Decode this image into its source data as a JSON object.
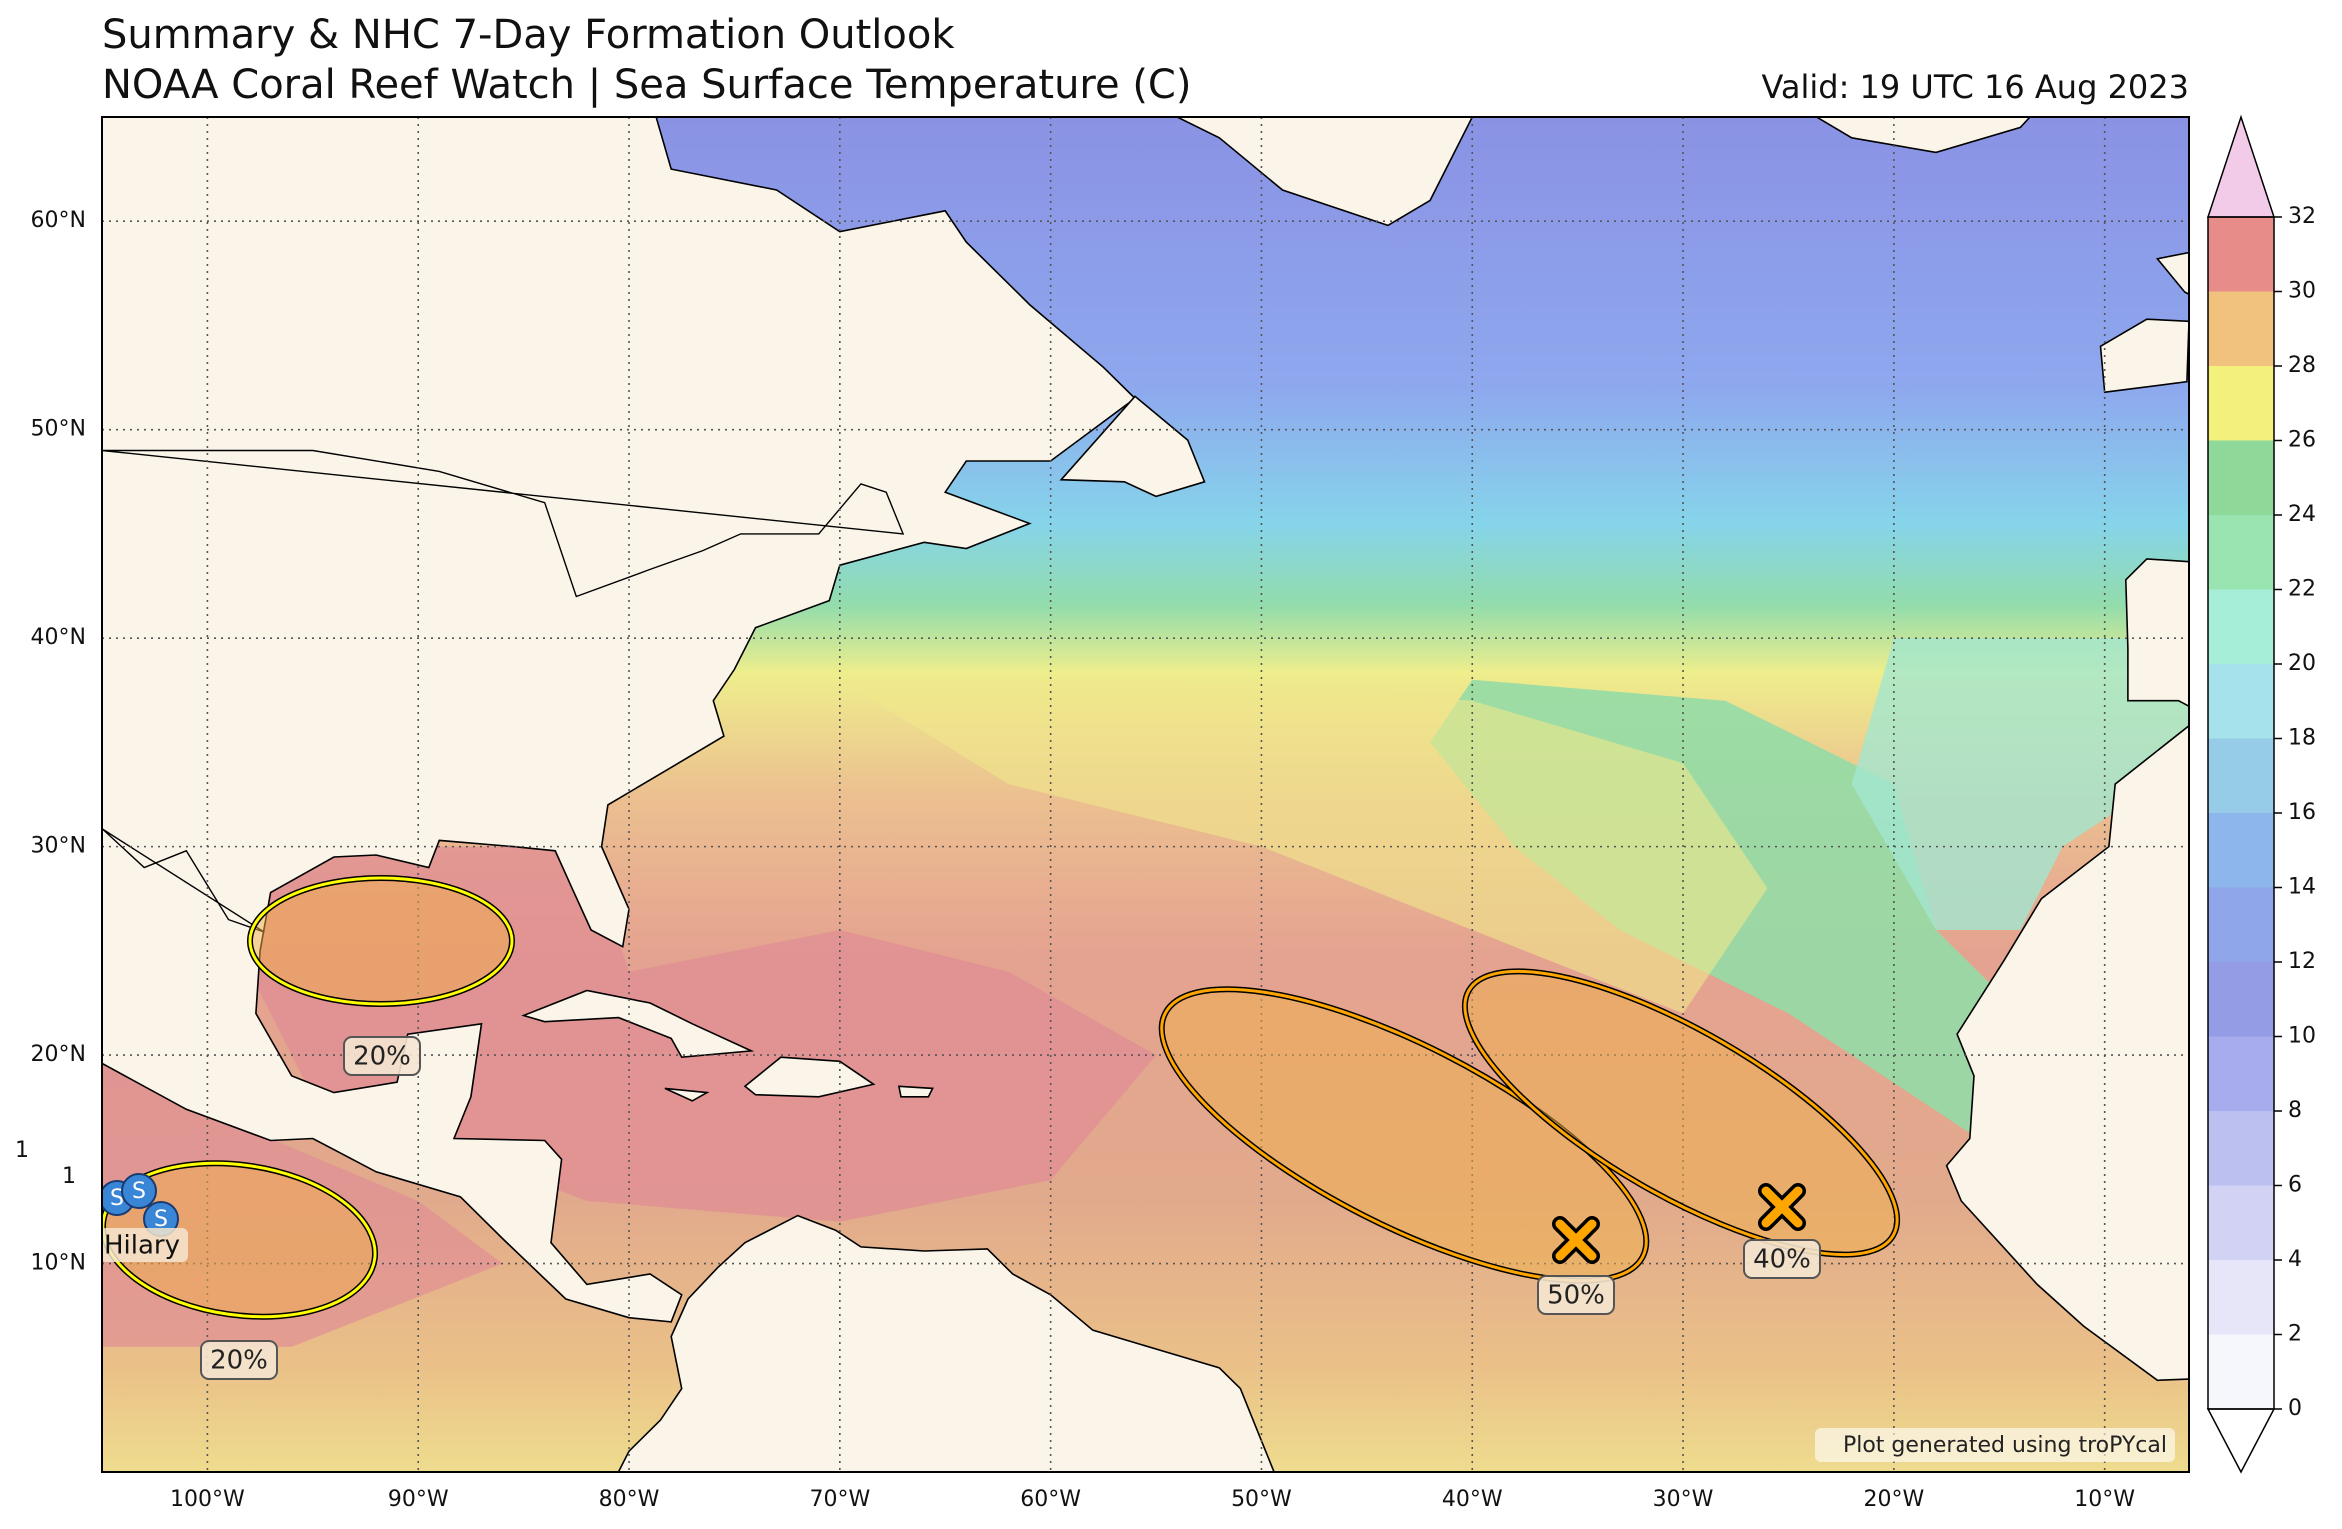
{
  "header": {
    "title": "Summary & NHC 7-Day Formation Outlook",
    "subtitle": "NOAA Coral Reef Watch | Sea Surface Temperature (C)",
    "valid": "Valid: 19 UTC 16 Aug 2023"
  },
  "map": {
    "lat_range": [
      0,
      65
    ],
    "lon_range": [
      -105,
      -6
    ],
    "lat_labels": [
      {
        "value": 10,
        "label": "10°N"
      },
      {
        "value": 20,
        "label": "20°N"
      },
      {
        "value": 30,
        "label": "30°N"
      },
      {
        "value": 40,
        "label": "40°N"
      },
      {
        "value": 50,
        "label": "50°N"
      },
      {
        "value": 60,
        "label": "60°N"
      }
    ],
    "lon_labels": [
      {
        "value": -100,
        "label": "100°W"
      },
      {
        "value": -90,
        "label": "90°W"
      },
      {
        "value": -80,
        "label": "80°W"
      },
      {
        "value": -70,
        "label": "70°W"
      },
      {
        "value": -60,
        "label": "60°W"
      },
      {
        "value": -50,
        "label": "50°W"
      },
      {
        "value": -40,
        "label": "40°W"
      },
      {
        "value": -30,
        "label": "30°W"
      },
      {
        "value": -20,
        "label": "20°W"
      },
      {
        "value": -10,
        "label": "10°W"
      }
    ],
    "grid": true
  },
  "colorbar": {
    "ticks": [
      0,
      2,
      4,
      6,
      8,
      10,
      12,
      14,
      16,
      18,
      20,
      22,
      24,
      26,
      28,
      30,
      32
    ],
    "colors": [
      "#f6f6fd",
      "#e6e6f8",
      "#d2d2f4",
      "#bcc0f0",
      "#a6aced",
      "#949ce6",
      "#90a6ea",
      "#8cb6ec",
      "#96cce8",
      "#a6e2ec",
      "#a6eed8",
      "#9ae4b2",
      "#8ed99a",
      "#f4f07c",
      "#f0c27e",
      "#e88c8a"
    ],
    "under": "#ffffff",
    "over": "#f2cbe8"
  },
  "outlooks": [
    {
      "label": "20%",
      "color": "#ffff00"
    },
    {
      "label": "20%",
      "color": "#ffff00"
    },
    {
      "label": "50%",
      "color": "#ffa500"
    },
    {
      "label": "40%",
      "color": "#ffa500"
    }
  ],
  "storm": {
    "name": "Hilary",
    "symbol": "S"
  },
  "stray_labels": [
    "1",
    "1"
  ],
  "credit": "Plot generated using troPYcal"
}
